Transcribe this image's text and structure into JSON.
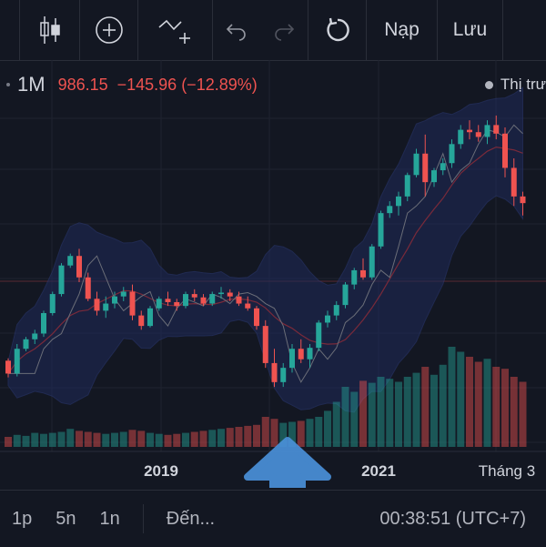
{
  "toolbar": {
    "icons": [
      "candlestick-icon",
      "add-indicator-icon",
      "drawing-tool-icon",
      "undo-icon",
      "redo-icon",
      "reset-icon"
    ],
    "deposit_label": "Nạp",
    "save_label": "Lưu"
  },
  "legend": {
    "timeframe": "1M",
    "price": "986.15",
    "change": "−145.96 (−12.89%)",
    "market_status": "Thị trư"
  },
  "chart_data": {
    "type": "candlestick",
    "x_tick_labels": [
      "2019",
      "2021",
      "Tháng 3"
    ],
    "ohlc": [
      [
        655,
        660,
        620,
        628
      ],
      [
        628,
        690,
        622,
        680
      ],
      [
        680,
        705,
        675,
        700
      ],
      [
        700,
        720,
        690,
        712
      ],
      [
        712,
        760,
        705,
        755
      ],
      [
        755,
        800,
        750,
        795
      ],
      [
        795,
        860,
        790,
        855
      ],
      [
        855,
        880,
        850,
        875
      ],
      [
        875,
        890,
        820,
        830
      ],
      [
        830,
        840,
        780,
        785
      ],
      [
        785,
        800,
        750,
        760
      ],
      [
        760,
        790,
        745,
        775
      ],
      [
        775,
        800,
        765,
        790
      ],
      [
        790,
        810,
        780,
        800
      ],
      [
        800,
        815,
        740,
        750
      ],
      [
        750,
        760,
        720,
        728
      ],
      [
        728,
        770,
        725,
        765
      ],
      [
        765,
        790,
        760,
        785
      ],
      [
        785,
        800,
        770,
        778
      ],
      [
        778,
        785,
        760,
        770
      ],
      [
        770,
        800,
        765,
        795
      ],
      [
        795,
        805,
        780,
        788
      ],
      [
        788,
        795,
        770,
        775
      ],
      [
        775,
        800,
        770,
        795
      ],
      [
        795,
        810,
        785,
        798
      ],
      [
        798,
        805,
        780,
        790
      ],
      [
        790,
        800,
        770,
        775
      ],
      [
        775,
        790,
        760,
        765
      ],
      [
        765,
        770,
        720,
        728
      ],
      [
        728,
        740,
        640,
        650
      ],
      [
        650,
        680,
        600,
        610
      ],
      [
        610,
        650,
        600,
        640
      ],
      [
        640,
        690,
        630,
        680
      ],
      [
        680,
        700,
        650,
        658
      ],
      [
        658,
        690,
        640,
        682
      ],
      [
        682,
        740,
        675,
        735
      ],
      [
        735,
        760,
        725,
        750
      ],
      [
        750,
        780,
        740,
        772
      ],
      [
        772,
        820,
        765,
        815
      ],
      [
        815,
        850,
        805,
        845
      ],
      [
        845,
        870,
        825,
        830
      ],
      [
        830,
        900,
        825,
        895
      ],
      [
        895,
        970,
        890,
        965
      ],
      [
        965,
        990,
        955,
        980
      ],
      [
        980,
        1010,
        960,
        1000
      ],
      [
        1000,
        1050,
        990,
        1045
      ],
      [
        1045,
        1100,
        1040,
        1090
      ],
      [
        1090,
        1130,
        1000,
        1030
      ],
      [
        1030,
        1060,
        1020,
        1055
      ],
      [
        1055,
        1080,
        1045,
        1070
      ],
      [
        1070,
        1120,
        1060,
        1110
      ],
      [
        1110,
        1150,
        1100,
        1140
      ],
      [
        1140,
        1160,
        1120,
        1135
      ],
      [
        1135,
        1150,
        1115,
        1125
      ],
      [
        1125,
        1160,
        1110,
        1150
      ],
      [
        1150,
        1170,
        1120,
        1132
      ],
      [
        1132,
        1145,
        1040,
        1060
      ],
      [
        1060,
        1080,
        980,
        1000
      ],
      [
        1000,
        1010,
        960,
        986
      ]
    ],
    "volume": [
      10,
      12,
      11,
      14,
      13,
      14,
      15,
      18,
      16,
      15,
      14,
      13,
      14,
      15,
      17,
      16,
      14,
      13,
      12,
      13,
      14,
      15,
      16,
      17,
      18,
      19,
      20,
      21,
      22,
      30,
      28,
      24,
      25,
      26,
      28,
      30,
      36,
      45,
      60,
      55,
      66,
      64,
      70,
      68,
      65,
      70,
      74,
      80,
      72,
      82,
      100,
      95,
      90,
      85,
      88,
      80,
      78,
      70,
      65
    ]
  },
  "bottom": {
    "timeframes": [
      "1p",
      "5n",
      "1n"
    ],
    "goto_label": "Đến...",
    "clock": "00:38:51 (UTC+7)"
  },
  "colors": {
    "background": "#131722",
    "up": "#26a69a",
    "down": "#ef5350",
    "annotation_arrow": "#4a90d9"
  }
}
